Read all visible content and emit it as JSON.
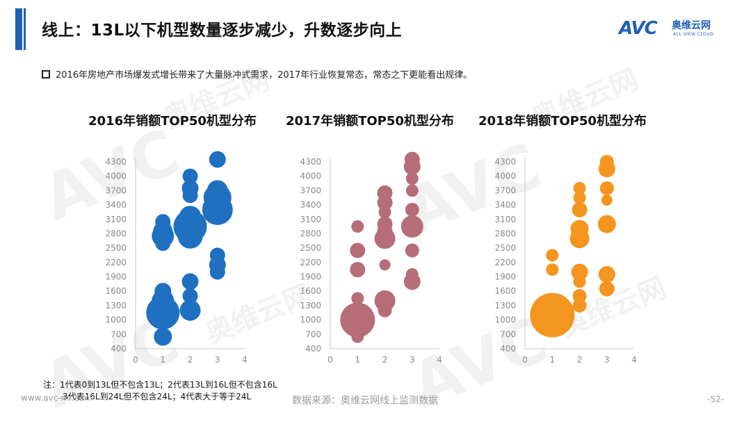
{
  "header": {
    "title": "线上：13L以下机型数量逐步减少，升数逐步向上",
    "logo_text": "AVC",
    "logo_cn": "奥维云网",
    "logo_en": "ALL VIEW CLOUD",
    "brand_color": "#1f5fb4"
  },
  "bullet": "2016年房地产市场爆发式增长带来了大量脉冲式需求，2017年行业恢复常态，常态之下更能看出规律。",
  "note": {
    "line1": "注：1代表0到13L但不包含13L；2代表13L到16L但不包含16L",
    "line2": "3代表16L到24L但不包含24L；4代表大于等于24L"
  },
  "footer": {
    "website": "www.avc-mr.com",
    "source": "数据来源：奥维云网线上监测数据",
    "page": "-52-"
  },
  "watermark": {
    "big": "AVC",
    "cn": "奥维云网",
    "en": "ALL VIEW CLOUD"
  },
  "chart_data": [
    {
      "type": "scatter",
      "title": "2016年销额TOP50机型分布",
      "color": "#1f70c1",
      "xlim": [
        0,
        4
      ],
      "xticks": [
        0,
        1,
        2,
        3,
        4
      ],
      "ylim": [
        400,
        4300
      ],
      "yticks": [
        400,
        700,
        1000,
        1300,
        1600,
        1900,
        2200,
        2500,
        2800,
        3100,
        3400,
        3700,
        4000,
        4300
      ],
      "points": [
        {
          "x": 1,
          "y": 650,
          "s": 13
        },
        {
          "x": 1,
          "y": 1000,
          "s": 14
        },
        {
          "x": 1,
          "y": 1150,
          "s": 24
        },
        {
          "x": 1,
          "y": 1250,
          "s": 19
        },
        {
          "x": 1,
          "y": 1400,
          "s": 16
        },
        {
          "x": 1,
          "y": 1600,
          "s": 12
        },
        {
          "x": 1,
          "y": 2600,
          "s": 11
        },
        {
          "x": 1,
          "y": 2750,
          "s": 16
        },
        {
          "x": 1,
          "y": 2850,
          "s": 14
        },
        {
          "x": 1,
          "y": 3050,
          "s": 11
        },
        {
          "x": 2,
          "y": 1200,
          "s": 15
        },
        {
          "x": 2,
          "y": 1500,
          "s": 11
        },
        {
          "x": 2,
          "y": 1800,
          "s": 12
        },
        {
          "x": 2,
          "y": 2750,
          "s": 18
        },
        {
          "x": 2,
          "y": 2950,
          "s": 24
        },
        {
          "x": 2,
          "y": 3150,
          "s": 16
        },
        {
          "x": 2,
          "y": 3600,
          "s": 11
        },
        {
          "x": 2,
          "y": 3750,
          "s": 12
        },
        {
          "x": 2,
          "y": 4000,
          "s": 11
        },
        {
          "x": 3,
          "y": 2000,
          "s": 11
        },
        {
          "x": 3,
          "y": 2150,
          "s": 12
        },
        {
          "x": 3,
          "y": 2350,
          "s": 11
        },
        {
          "x": 3,
          "y": 3300,
          "s": 22
        },
        {
          "x": 3,
          "y": 3550,
          "s": 20
        },
        {
          "x": 3,
          "y": 3700,
          "s": 15
        },
        {
          "x": 3,
          "y": 4350,
          "s": 12
        }
      ]
    },
    {
      "type": "scatter",
      "title": "2017年销额TOP50机型分布",
      "color": "#b56d78",
      "xlim": [
        0,
        4
      ],
      "xticks": [
        0,
        1,
        2,
        3,
        4
      ],
      "ylim": [
        400,
        4300
      ],
      "yticks": [
        400,
        700,
        1000,
        1300,
        1600,
        1900,
        2200,
        2500,
        2800,
        3100,
        3400,
        3700,
        4000,
        4300
      ],
      "points": [
        {
          "x": 1,
          "y": 650,
          "s": 9
        },
        {
          "x": 1,
          "y": 1000,
          "s": 25
        },
        {
          "x": 1,
          "y": 1450,
          "s": 9
        },
        {
          "x": 1,
          "y": 2050,
          "s": 11
        },
        {
          "x": 1,
          "y": 2450,
          "s": 11
        },
        {
          "x": 1,
          "y": 2950,
          "s": 9
        },
        {
          "x": 2,
          "y": 1200,
          "s": 10
        },
        {
          "x": 2,
          "y": 1400,
          "s": 15
        },
        {
          "x": 2,
          "y": 2150,
          "s": 8
        },
        {
          "x": 2,
          "y": 2700,
          "s": 15
        },
        {
          "x": 2,
          "y": 2850,
          "s": 11
        },
        {
          "x": 2,
          "y": 3000,
          "s": 11
        },
        {
          "x": 2,
          "y": 3250,
          "s": 9
        },
        {
          "x": 2,
          "y": 3450,
          "s": 11
        },
        {
          "x": 2,
          "y": 3650,
          "s": 11
        },
        {
          "x": 3,
          "y": 1800,
          "s": 12
        },
        {
          "x": 3,
          "y": 1950,
          "s": 9
        },
        {
          "x": 3,
          "y": 2450,
          "s": 10
        },
        {
          "x": 3,
          "y": 2950,
          "s": 16
        },
        {
          "x": 3,
          "y": 3300,
          "s": 10
        },
        {
          "x": 3,
          "y": 3700,
          "s": 9
        },
        {
          "x": 3,
          "y": 3950,
          "s": 9
        },
        {
          "x": 3,
          "y": 4200,
          "s": 12
        },
        {
          "x": 3,
          "y": 4350,
          "s": 11
        }
      ]
    },
    {
      "type": "scatter",
      "title": "2018年销额TOP50机型分布",
      "color": "#f3951f",
      "xlim": [
        0,
        4
      ],
      "xticks": [
        0,
        1,
        2,
        3,
        4
      ],
      "ylim": [
        400,
        4300
      ],
      "yticks": [
        400,
        700,
        1000,
        1300,
        1600,
        1900,
        2200,
        2500,
        2800,
        3100,
        3400,
        3700,
        4000,
        4300
      ],
      "points": [
        {
          "x": 1,
          "y": 800,
          "s": 11
        },
        {
          "x": 1,
          "y": 1100,
          "s": 32
        },
        {
          "x": 1,
          "y": 2050,
          "s": 9
        },
        {
          "x": 1,
          "y": 2350,
          "s": 9
        },
        {
          "x": 2,
          "y": 1300,
          "s": 10
        },
        {
          "x": 2,
          "y": 1500,
          "s": 10
        },
        {
          "x": 2,
          "y": 1800,
          "s": 9
        },
        {
          "x": 2,
          "y": 2000,
          "s": 12
        },
        {
          "x": 2,
          "y": 2700,
          "s": 14
        },
        {
          "x": 2,
          "y": 2900,
          "s": 13
        },
        {
          "x": 2,
          "y": 3300,
          "s": 11
        },
        {
          "x": 2,
          "y": 3550,
          "s": 9
        },
        {
          "x": 2,
          "y": 3750,
          "s": 9
        },
        {
          "x": 3,
          "y": 1650,
          "s": 11
        },
        {
          "x": 3,
          "y": 1950,
          "s": 12
        },
        {
          "x": 3,
          "y": 3000,
          "s": 13
        },
        {
          "x": 3,
          "y": 3500,
          "s": 8
        },
        {
          "x": 3,
          "y": 3750,
          "s": 10
        },
        {
          "x": 3,
          "y": 4150,
          "s": 12
        },
        {
          "x": 3,
          "y": 4300,
          "s": 10
        }
      ]
    }
  ]
}
